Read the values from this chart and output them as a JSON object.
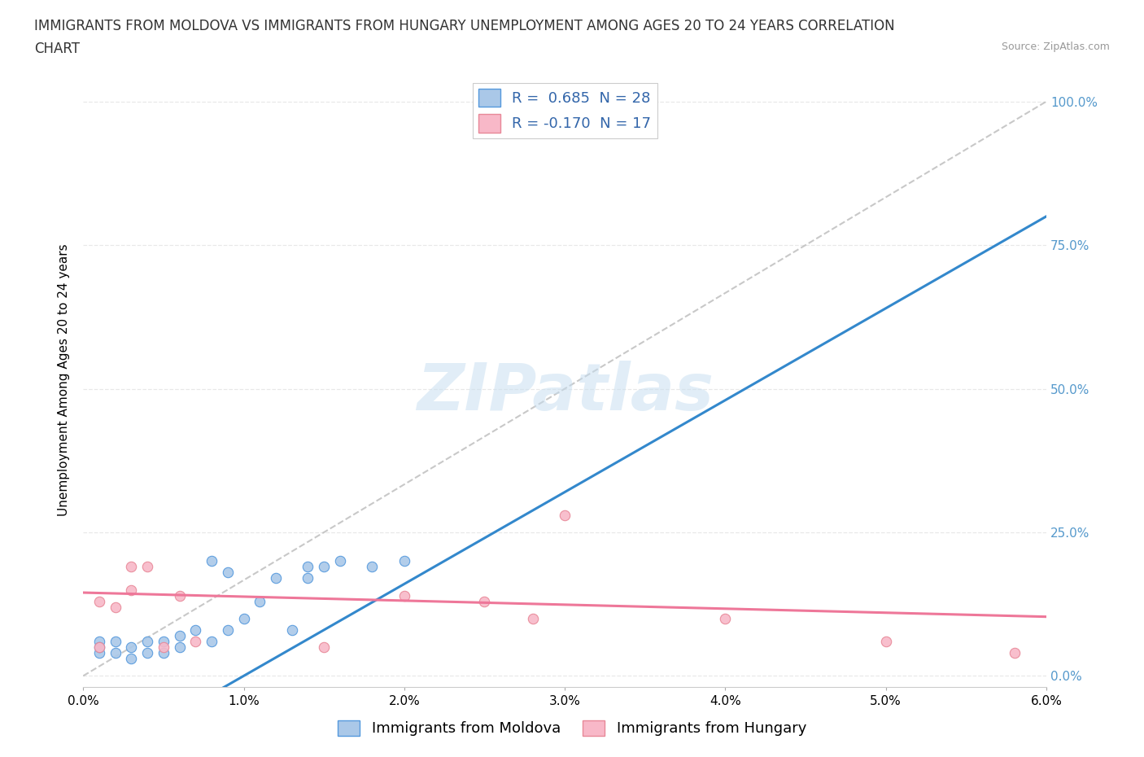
{
  "title_line1": "IMMIGRANTS FROM MOLDOVA VS IMMIGRANTS FROM HUNGARY UNEMPLOYMENT AMONG AGES 20 TO 24 YEARS CORRELATION",
  "title_line2": "CHART",
  "source": "Source: ZipAtlas.com",
  "ylabel": "Unemployment Among Ages 20 to 24 years",
  "xlim": [
    0.0,
    0.06
  ],
  "ylim": [
    -0.02,
    1.05
  ],
  "yticks": [
    0.0,
    0.25,
    0.5,
    0.75,
    1.0
  ],
  "ytick_labels_right": [
    "0.0%",
    "25.0%",
    "50.0%",
    "75.0%",
    "100.0%"
  ],
  "xticks": [
    0.0,
    0.01,
    0.02,
    0.03,
    0.04,
    0.05,
    0.06
  ],
  "xtick_labels": [
    "0.0%",
    "1.0%",
    "2.0%",
    "3.0%",
    "4.0%",
    "5.0%",
    "6.0%"
  ],
  "moldova_color": "#aac8e8",
  "moldova_edge_color": "#5599dd",
  "hungary_color": "#f8b8c8",
  "hungary_edge_color": "#e88898",
  "moldova_line_color": "#3388cc",
  "hungary_line_color": "#ee7799",
  "ref_line_color": "#bbbbbb",
  "moldova_R": 0.685,
  "moldova_N": 28,
  "hungary_R": -0.17,
  "hungary_N": 17,
  "watermark": "ZIPatlas",
  "moldova_x": [
    0.001,
    0.001,
    0.001,
    0.002,
    0.002,
    0.003,
    0.003,
    0.004,
    0.004,
    0.005,
    0.005,
    0.006,
    0.006,
    0.007,
    0.008,
    0.008,
    0.009,
    0.009,
    0.01,
    0.011,
    0.012,
    0.013,
    0.014,
    0.014,
    0.015,
    0.016,
    0.018,
    0.02
  ],
  "moldova_y": [
    0.04,
    0.06,
    0.05,
    0.04,
    0.06,
    0.05,
    0.03,
    0.04,
    0.06,
    0.04,
    0.06,
    0.05,
    0.07,
    0.08,
    0.06,
    0.2,
    0.08,
    0.18,
    0.1,
    0.13,
    0.17,
    0.08,
    0.17,
    0.19,
    0.19,
    0.2,
    0.19,
    0.2
  ],
  "hungary_x": [
    0.001,
    0.001,
    0.002,
    0.003,
    0.003,
    0.004,
    0.005,
    0.006,
    0.007,
    0.015,
    0.02,
    0.025,
    0.028,
    0.03,
    0.04,
    0.05,
    0.058
  ],
  "hungary_y": [
    0.13,
    0.05,
    0.12,
    0.19,
    0.15,
    0.19,
    0.05,
    0.14,
    0.06,
    0.05,
    0.14,
    0.13,
    0.1,
    0.28,
    0.1,
    0.06,
    0.04
  ],
  "background_color": "#ffffff",
  "grid_color": "#e8e8e8",
  "legend_fontsize": 13,
  "title_fontsize": 12,
  "axis_label_fontsize": 11,
  "tick_fontsize": 11,
  "right_tick_color": "#5599cc"
}
